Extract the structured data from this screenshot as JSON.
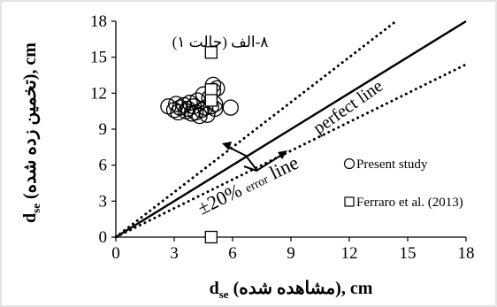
{
  "chart_data": {
    "type": "scatter",
    "panel_label": "۸-الف (حالت ۱)",
    "xlabel_main": "d",
    "xlabel_sub": "se",
    "xlabel_rest": " (مشاهده شده), cm",
    "ylabel_main": "d",
    "ylabel_sub": "se",
    "ylabel_rest": " (تخمین زده شده), cm",
    "xlim": [
      0,
      18
    ],
    "ylim": [
      0,
      18
    ],
    "xticks": [
      0,
      3,
      6,
      9,
      12,
      15,
      18
    ],
    "yticks": [
      0,
      3,
      6,
      9,
      12,
      15,
      18
    ],
    "grid": false,
    "legend_position": "bottom-right",
    "series": [
      {
        "name": "Present study",
        "marker": "circle",
        "points": [
          [
            2.7,
            10.9
          ],
          [
            3.0,
            10.6
          ],
          [
            3.1,
            11.1
          ],
          [
            3.2,
            10.4
          ],
          [
            3.3,
            10.8
          ],
          [
            3.5,
            11.0
          ],
          [
            3.6,
            10.5
          ],
          [
            3.7,
            10.7
          ],
          [
            3.8,
            11.2
          ],
          [
            3.9,
            10.3
          ],
          [
            4.0,
            10.9
          ],
          [
            4.1,
            10.4
          ],
          [
            4.2,
            11.4
          ],
          [
            4.3,
            10.1
          ],
          [
            4.4,
            10.6
          ],
          [
            4.5,
            11.9
          ],
          [
            4.6,
            10.8
          ],
          [
            4.7,
            10.2
          ],
          [
            4.8,
            11.6
          ],
          [
            4.9,
            10.9
          ],
          [
            5.0,
            12.2
          ],
          [
            5.0,
            12.7
          ],
          [
            5.1,
            10.7
          ],
          [
            5.1,
            11.1
          ],
          [
            5.2,
            12.4
          ],
          [
            5.9,
            10.8
          ]
        ]
      },
      {
        "name": "Ferraro et al. (2013)",
        "marker": "square",
        "points": [
          [
            4.9,
            15.4
          ],
          [
            4.9,
            12.3
          ],
          [
            4.9,
            11.4
          ],
          [
            4.9,
            0.0
          ]
        ]
      }
    ],
    "reference_lines": [
      {
        "label": "perfect line",
        "slope": 1.0,
        "style": "solid"
      },
      {
        "label": "+20%",
        "slope": 1.25,
        "style": "dotted"
      },
      {
        "label": "-20%",
        "slope": 0.8,
        "style": "dotted"
      }
    ],
    "annotations": {
      "perfect_line": "perfect line",
      "error_pm": "±20%",
      "error_word": "error",
      "error_line": "line"
    }
  }
}
